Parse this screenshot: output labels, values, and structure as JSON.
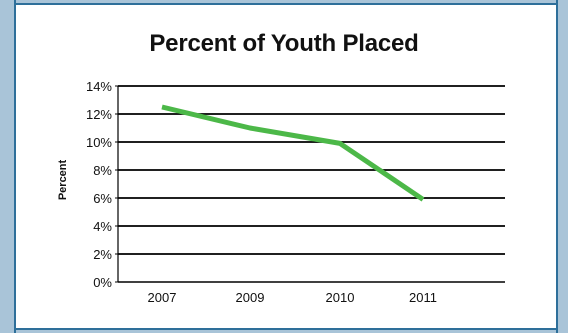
{
  "chart_data": {
    "type": "line",
    "title": "Percent of Youth Placed",
    "xlabel": "",
    "ylabel": "Percent",
    "categories": [
      "2007",
      "2009",
      "2010",
      "2011"
    ],
    "series": [
      {
        "values": [
          12.5,
          11.0,
          9.9,
          5.9
        ]
      }
    ],
    "ylim": [
      0,
      14
    ],
    "yticks": [
      0,
      2,
      4,
      6,
      8,
      10,
      12,
      14
    ],
    "ytick_labels": [
      "0%",
      "2%",
      "4%",
      "6%",
      "8%",
      "10%",
      "12%",
      "14%"
    ],
    "grid": "horizontal",
    "legend": "none",
    "colors": {
      "line": "#4cb848",
      "grid": "#000000",
      "frame": "#a9c4d8",
      "frame_edge": "#2e6f9a"
    }
  }
}
